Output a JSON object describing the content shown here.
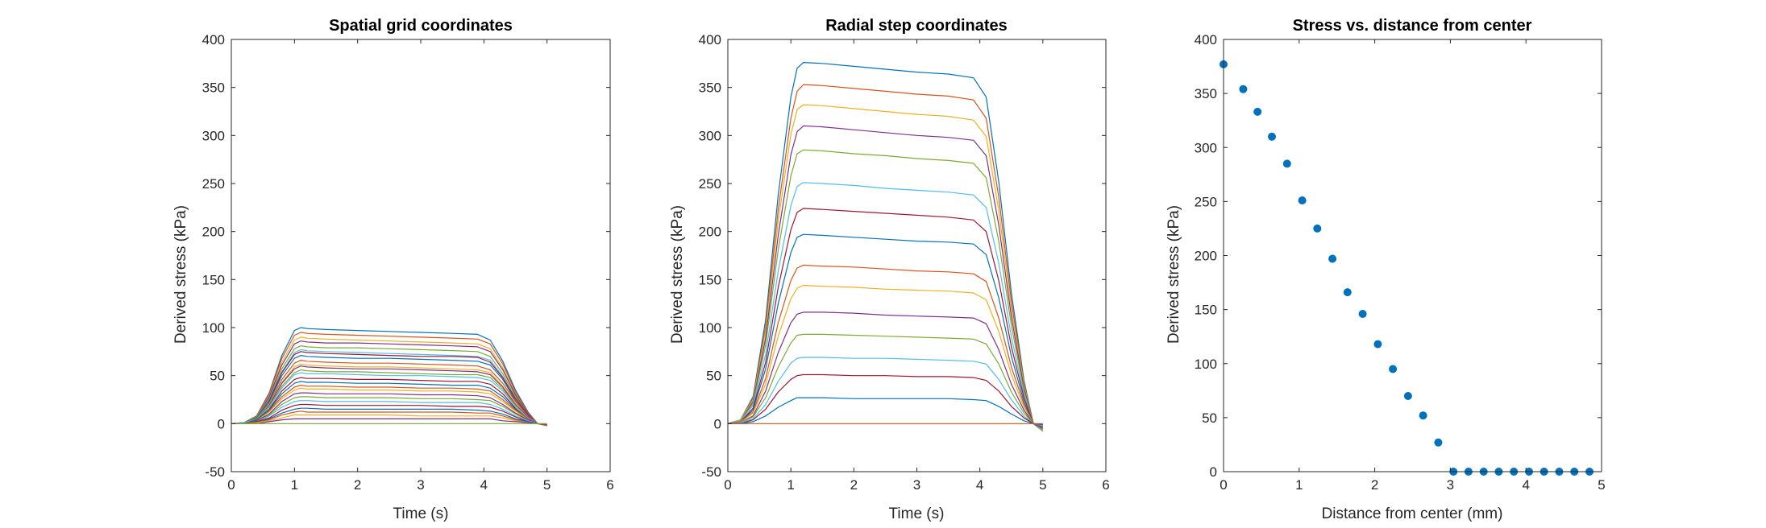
{
  "palette": [
    "#0072BD",
    "#D95319",
    "#EDB120",
    "#7E2F8E",
    "#77AC30",
    "#4DBEEE",
    "#A2142F"
  ],
  "chart_data": [
    {
      "type": "line",
      "title": "Spatial grid coordinates",
      "xlabel": "Time (s)",
      "ylabel": "Derived stress (kPa)",
      "xlim": [
        0,
        6
      ],
      "ylim": [
        -50,
        400
      ],
      "xticks": [
        0,
        1,
        2,
        3,
        4,
        5,
        6
      ],
      "yticks": [
        -50,
        0,
        50,
        100,
        150,
        200,
        250,
        300,
        350,
        400
      ],
      "profile_x": [
        0,
        0.2,
        0.4,
        0.6,
        0.8,
        1.0,
        1.1,
        1.2,
        1.5,
        2.0,
        2.5,
        3.0,
        3.5,
        3.9,
        4.1,
        4.3,
        4.5,
        4.7,
        4.85,
        5.0
      ],
      "series": [
        {
          "values": [
            0,
            1,
            8,
            32,
            71,
            97,
            100,
            99,
            98,
            97,
            96,
            95,
            94,
            93,
            87,
            65,
            35,
            12,
            0,
            -2
          ]
        },
        {
          "values": [
            0,
            1,
            8,
            31,
            68,
            92,
            95,
            94,
            93,
            92,
            91,
            90,
            89,
            88,
            83,
            62,
            33,
            11,
            0,
            -2
          ]
        },
        {
          "values": [
            0,
            1,
            7,
            29,
            64,
            87,
            90,
            89,
            88,
            87,
            86,
            85,
            84,
            83,
            78,
            58,
            31,
            10,
            0,
            -2
          ]
        },
        {
          "values": [
            0,
            1,
            7,
            28,
            61,
            83,
            86,
            85,
            84,
            84,
            83,
            82,
            81,
            80,
            75,
            56,
            30,
            10,
            0,
            -2
          ]
        },
        {
          "values": [
            0,
            1,
            7,
            26,
            57,
            78,
            81,
            80,
            79,
            79,
            78,
            77,
            76,
            75,
            70,
            52,
            28,
            9,
            0,
            -2
          ]
        },
        {
          "values": [
            0,
            1,
            6,
            25,
            54,
            74,
            77,
            76,
            75,
            74,
            73,
            72,
            71,
            70,
            66,
            49,
            26,
            9,
            0,
            -2
          ]
        },
        {
          "values": [
            0,
            1,
            6,
            24,
            53,
            72,
            75,
            74,
            73,
            72,
            71,
            70,
            70,
            69,
            64,
            48,
            26,
            9,
            0,
            -2
          ]
        },
        {
          "values": [
            0,
            1,
            6,
            23,
            50,
            68,
            71,
            70,
            69,
            68,
            68,
            67,
            66,
            65,
            61,
            46,
            24,
            8,
            0,
            -2
          ]
        },
        {
          "values": [
            0,
            1,
            5,
            21,
            46,
            63,
            66,
            65,
            64,
            63,
            63,
            62,
            61,
            60,
            56,
            42,
            23,
            8,
            0,
            -2
          ]
        },
        {
          "values": [
            0,
            1,
            5,
            20,
            43,
            59,
            62,
            61,
            60,
            59,
            59,
            58,
            57,
            56,
            53,
            39,
            21,
            7,
            0,
            -2
          ]
        },
        {
          "values": [
            0,
            1,
            5,
            19,
            42,
            57,
            60,
            59,
            58,
            57,
            57,
            56,
            55,
            54,
            51,
            38,
            20,
            7,
            0,
            -2
          ]
        },
        {
          "values": [
            0,
            1,
            5,
            18,
            39,
            53,
            56,
            55,
            54,
            54,
            53,
            52,
            51,
            51,
            48,
            36,
            19,
            6,
            0,
            -2
          ]
        },
        {
          "values": [
            0,
            1,
            4,
            17,
            37,
            51,
            53,
            52,
            52,
            51,
            50,
            50,
            49,
            48,
            45,
            34,
            18,
            6,
            0,
            -2
          ]
        },
        {
          "values": [
            0,
            0,
            4,
            15,
            34,
            46,
            48,
            47,
            47,
            46,
            46,
            45,
            44,
            44,
            41,
            31,
            16,
            5,
            0,
            -2
          ]
        },
        {
          "values": [
            0,
            0,
            4,
            14,
            31,
            42,
            44,
            43,
            43,
            42,
            42,
            41,
            40,
            40,
            37,
            28,
            15,
            5,
            0,
            -2
          ]
        },
        {
          "values": [
            0,
            0,
            3,
            13,
            28,
            38,
            40,
            39,
            39,
            38,
            38,
            37,
            37,
            36,
            34,
            25,
            14,
            5,
            0,
            -2
          ]
        },
        {
          "values": [
            0,
            0,
            3,
            12,
            26,
            35,
            37,
            36,
            36,
            35,
            35,
            34,
            34,
            33,
            31,
            23,
            13,
            4,
            0,
            -2
          ]
        },
        {
          "values": [
            0,
            0,
            3,
            10,
            23,
            31,
            32,
            32,
            31,
            31,
            31,
            30,
            30,
            29,
            27,
            20,
            11,
            4,
            0,
            -2
          ]
        },
        {
          "values": [
            0,
            0,
            2,
            9,
            20,
            27,
            28,
            28,
            27,
            27,
            27,
            26,
            26,
            25,
            24,
            18,
            10,
            3,
            0,
            -2
          ]
        },
        {
          "values": [
            0,
            0,
            2,
            8,
            17,
            23,
            24,
            24,
            23,
            23,
            23,
            22,
            22,
            22,
            20,
            15,
            8,
            3,
            0,
            -2
          ]
        },
        {
          "values": [
            0,
            0,
            2,
            6,
            14,
            19,
            20,
            20,
            19,
            19,
            19,
            19,
            18,
            18,
            17,
            13,
            7,
            2,
            0,
            -2
          ]
        },
        {
          "values": [
            0,
            0,
            1,
            5,
            11,
            15,
            16,
            16,
            15,
            15,
            15,
            15,
            15,
            14,
            13,
            10,
            5,
            2,
            0,
            -2
          ]
        },
        {
          "values": [
            0,
            0,
            1,
            4,
            9,
            12,
            13,
            12,
            12,
            12,
            12,
            12,
            12,
            11,
            11,
            8,
            4,
            1,
            0,
            -2
          ]
        },
        {
          "values": [
            0,
            0,
            1,
            3,
            6,
            9,
            9,
            9,
            9,
            9,
            9,
            8,
            8,
            8,
            8,
            6,
            3,
            1,
            0,
            -1
          ]
        },
        {
          "values": [
            0,
            0,
            0,
            2,
            4,
            5,
            5,
            5,
            5,
            5,
            5,
            5,
            5,
            5,
            5,
            3,
            2,
            1,
            0,
            -1
          ]
        },
        {
          "values": [
            0,
            0,
            0,
            0,
            0,
            0,
            0,
            0,
            0,
            0,
            0,
            0,
            0,
            0,
            0,
            0,
            0,
            0,
            0,
            0
          ]
        }
      ]
    },
    {
      "type": "line",
      "title": "Radial step coordinates",
      "xlabel": "Time (s)",
      "ylabel": "Derived stress (kPa)",
      "xlim": [
        0,
        6
      ],
      "ylim": [
        -50,
        400
      ],
      "xticks": [
        0,
        1,
        2,
        3,
        4,
        5,
        6
      ],
      "yticks": [
        -50,
        0,
        50,
        100,
        150,
        200,
        250,
        300,
        350,
        400
      ],
      "profile_x": [
        0,
        0.2,
        0.4,
        0.6,
        0.8,
        1.0,
        1.1,
        1.2,
        1.5,
        2.0,
        2.5,
        3.0,
        3.5,
        3.9,
        4.1,
        4.3,
        4.5,
        4.7,
        4.85,
        5.0
      ],
      "series": [
        {
          "values": [
            0,
            4,
            28,
            108,
            238,
            340,
            370,
            376,
            375,
            372,
            369,
            366,
            364,
            360,
            340,
            252,
            136,
            45,
            0,
            -8
          ]
        },
        {
          "values": [
            0,
            4,
            26,
            101,
            223,
            318,
            346,
            353,
            352,
            349,
            346,
            343,
            341,
            337,
            318,
            236,
            127,
            42,
            0,
            -8
          ]
        },
        {
          "values": [
            0,
            4,
            25,
            96,
            211,
            301,
            327,
            332,
            331,
            328,
            325,
            322,
            320,
            316,
            299,
            222,
            119,
            40,
            0,
            -8
          ]
        },
        {
          "values": [
            0,
            3,
            23,
            89,
            196,
            280,
            304,
            310,
            309,
            306,
            303,
            300,
            298,
            295,
            279,
            207,
            111,
            37,
            0,
            -7
          ]
        },
        {
          "values": [
            0,
            3,
            21,
            82,
            181,
            258,
            281,
            285,
            284,
            281,
            279,
            276,
            274,
            271,
            256,
            190,
            102,
            34,
            0,
            -7
          ]
        },
        {
          "values": [
            0,
            3,
            19,
            72,
            159,
            227,
            247,
            251,
            250,
            248,
            245,
            243,
            241,
            238,
            225,
            167,
            90,
            30,
            0,
            -6
          ]
        },
        {
          "values": [
            0,
            2,
            16,
            64,
            142,
            202,
            220,
            224,
            223,
            221,
            219,
            217,
            215,
            212,
            200,
            149,
            80,
            27,
            0,
            -5
          ]
        },
        {
          "values": [
            0,
            2,
            14,
            57,
            125,
            178,
            194,
            197,
            196,
            194,
            192,
            190,
            189,
            187,
            176,
            131,
            70,
            23,
            0,
            -5
          ]
        },
        {
          "values": [
            0,
            2,
            12,
            47,
            105,
            149,
            162,
            165,
            164,
            163,
            161,
            159,
            158,
            156,
            148,
            110,
            59,
            20,
            0,
            -4
          ]
        },
        {
          "values": [
            0,
            1,
            11,
            41,
            91,
            130,
            141,
            144,
            143,
            142,
            140,
            139,
            138,
            136,
            129,
            96,
            51,
            17,
            0,
            -3
          ]
        },
        {
          "values": [
            0,
            1,
            8,
            34,
            74,
            105,
            114,
            116,
            116,
            115,
            113,
            112,
            111,
            110,
            104,
            77,
            41,
            14,
            0,
            -3
          ]
        },
        {
          "values": [
            0,
            1,
            7,
            27,
            59,
            84,
            92,
            93,
            93,
            92,
            91,
            90,
            89,
            88,
            83,
            62,
            33,
            11,
            0,
            -2
          ]
        },
        {
          "values": [
            0,
            1,
            5,
            20,
            44,
            63,
            68,
            69,
            69,
            68,
            68,
            67,
            66,
            65,
            62,
            46,
            25,
            8,
            0,
            -2
          ]
        },
        {
          "values": [
            0,
            0,
            4,
            15,
            33,
            46,
            50,
            51,
            51,
            50,
            50,
            49,
            49,
            48,
            45,
            34,
            18,
            6,
            0,
            -1
          ]
        },
        {
          "values": [
            0,
            0,
            2,
            8,
            17,
            24,
            27,
            27,
            27,
            26,
            26,
            26,
            26,
            25,
            24,
            18,
            10,
            3,
            0,
            -1
          ]
        },
        {
          "values": [
            0,
            0,
            0,
            0,
            0,
            0,
            0,
            0,
            0,
            0,
            0,
            0,
            0,
            0,
            0,
            0,
            0,
            0,
            0,
            0
          ]
        }
      ]
    },
    {
      "type": "scatter",
      "title": "Stress vs. distance from center",
      "xlabel": "Distance from center (mm)",
      "ylabel": "Derived stress (kPa)",
      "xlim": [
        0,
        5
      ],
      "ylim": [
        0,
        400
      ],
      "xticks": [
        0,
        1,
        2,
        3,
        4,
        5
      ],
      "yticks": [
        0,
        50,
        100,
        150,
        200,
        250,
        300,
        350,
        400
      ],
      "color": "#0072BD",
      "x": [
        0,
        0.26,
        0.45,
        0.64,
        0.84,
        1.04,
        1.24,
        1.44,
        1.64,
        1.84,
        2.04,
        2.24,
        2.44,
        2.64,
        2.84,
        3.04,
        3.24,
        3.44,
        3.64,
        3.84,
        4.04,
        4.24,
        4.44,
        4.64,
        4.84
      ],
      "y": [
        377,
        354,
        333,
        310,
        285,
        251,
        225,
        197,
        166,
        146,
        118,
        95,
        70,
        52,
        27,
        0,
        0,
        0,
        0,
        0,
        0,
        0,
        0,
        0,
        0
      ]
    }
  ]
}
